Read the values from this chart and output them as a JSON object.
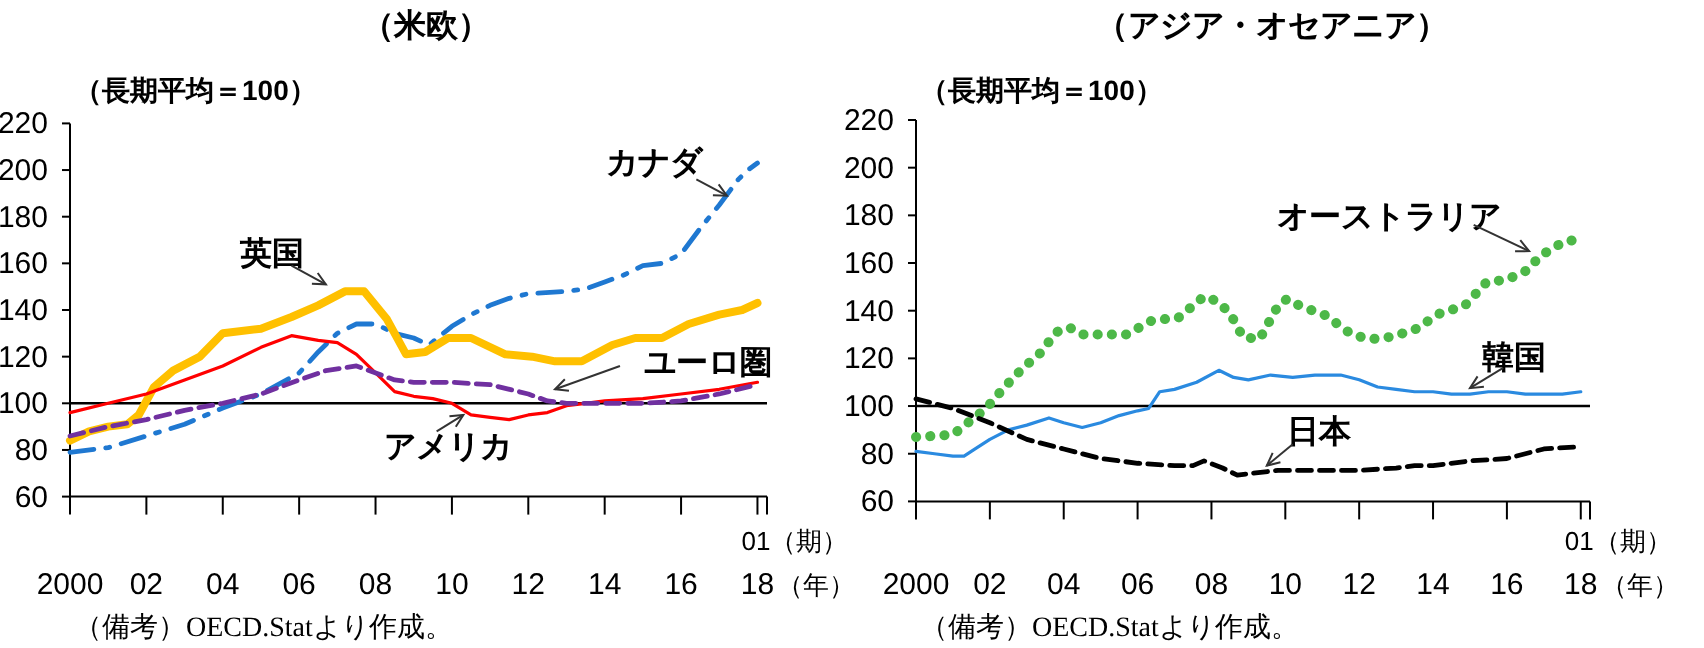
{
  "chart_data": [
    {
      "type": "line",
      "title": "（米欧）",
      "ylabel": "（長期平均＝100）",
      "xlabel": "（年）",
      "annotations": [
        "01（期）",
        "（備考）OECD.Statより作成。"
      ],
      "xlim": [
        2000,
        2018.25
      ],
      "ylim": [
        60,
        220
      ],
      "yticks": [
        60,
        80,
        100,
        120,
        140,
        160,
        180,
        200,
        220
      ],
      "xticks": [
        {
          "value": 2000,
          "label": "2000"
        },
        {
          "value": 2002,
          "label": "02"
        },
        {
          "value": 2004,
          "label": "04"
        },
        {
          "value": 2006,
          "label": "06"
        },
        {
          "value": 2008,
          "label": "08"
        },
        {
          "value": 2010,
          "label": "10"
        },
        {
          "value": 2012,
          "label": "12"
        },
        {
          "value": 2014,
          "label": "14"
        },
        {
          "value": 2016,
          "label": "16"
        },
        {
          "value": 2018,
          "label": "18"
        }
      ],
      "grid": false,
      "legend": false,
      "ref_lines": [
        {
          "axis": "y",
          "value": 100,
          "color": "#000000"
        }
      ],
      "series": [
        {
          "name": "カナダ",
          "color": "#1f78d1",
          "line_style": "dashdot",
          "x": [
            2000,
            2001,
            2002,
            2003,
            2004,
            2005,
            2006,
            2006.5,
            2007,
            2007.5,
            2008,
            2008.5,
            2009,
            2009.4,
            2010,
            2010.5,
            2011,
            2011.5,
            2012,
            2013,
            2013.5,
            2014,
            2014.5,
            2015,
            2015.5,
            2016,
            2016.5,
            2017,
            2017.5,
            2017.75,
            2018
          ],
          "values": [
            79,
            81,
            86,
            91,
            98,
            104,
            113,
            122,
            130,
            134,
            134,
            130,
            128,
            125,
            133,
            138,
            142,
            145,
            147,
            148,
            149,
            152,
            155,
            159,
            160,
            164,
            175,
            185,
            196,
            200,
            203
          ]
        },
        {
          "name": "英国",
          "color": "#ffc000",
          "line_style": "solid",
          "x": [
            2000,
            2000.5,
            2001,
            2001.5,
            2001.8,
            2002.2,
            2002.7,
            2003.4,
            2004,
            2005,
            2005.8,
            2006.5,
            2007.2,
            2007.7,
            2008.3,
            2008.8,
            2009.3,
            2009.9,
            2010.5,
            2011.4,
            2012.1,
            2012.7,
            2013.4,
            2014.2,
            2014.8,
            2015.5,
            2016.2,
            2017,
            2017.6,
            2018
          ],
          "values": [
            84,
            88,
            90,
            91,
            95,
            107,
            114,
            120,
            130,
            132,
            137,
            142,
            148,
            148,
            136,
            121,
            122,
            128,
            128,
            121,
            120,
            118,
            118,
            125,
            128,
            128,
            134,
            138,
            140,
            143
          ]
        },
        {
          "name": "アメリカ",
          "color": "#ff0000",
          "line_style": "solid",
          "x": [
            2000,
            2001,
            2002,
            2003,
            2004,
            2005,
            2005.8,
            2006.5,
            2007,
            2007.5,
            2008,
            2008.5,
            2009,
            2009.5,
            2010,
            2010.5,
            2011,
            2011.5,
            2012,
            2012.5,
            2013,
            2013.5,
            2014,
            2015,
            2016,
            2017,
            2018
          ],
          "values": [
            96,
            100,
            104,
            110,
            116,
            124,
            129,
            127,
            126,
            121,
            113,
            105,
            103,
            102,
            100,
            95,
            94,
            93,
            95,
            96,
            99,
            100,
            101,
            102,
            104,
            106,
            109
          ]
        },
        {
          "name": "ユーロ圏",
          "color": "#7030a0",
          "line_style": "dashed",
          "x": [
            2000,
            2001,
            2002,
            2003,
            2004,
            2005,
            2006,
            2006.7,
            2007.5,
            2008.5,
            2009,
            2010,
            2011,
            2012,
            2012.5,
            2013,
            2014,
            2015,
            2016,
            2017,
            2018
          ],
          "values": [
            86,
            90,
            93,
            97,
            100,
            104,
            110,
            114,
            116,
            110,
            109,
            109,
            108,
            104,
            101,
            100,
            100,
            100,
            101,
            104,
            108
          ]
        }
      ]
    },
    {
      "type": "line",
      "title": "（アジア・オセアニア）",
      "ylabel": "（長期平均＝100）",
      "xlabel": "（年）",
      "annotations": [
        "01（期）",
        "（備考）OECD.Statより作成。"
      ],
      "xlim": [
        2000,
        2018.25
      ],
      "ylim": [
        60,
        220
      ],
      "yticks": [
        60,
        80,
        100,
        120,
        140,
        160,
        180,
        200,
        220
      ],
      "xticks": [
        {
          "value": 2000,
          "label": "2000"
        },
        {
          "value": 2002,
          "label": "02"
        },
        {
          "value": 2004,
          "label": "04"
        },
        {
          "value": 2006,
          "label": "06"
        },
        {
          "value": 2008,
          "label": "08"
        },
        {
          "value": 2010,
          "label": "10"
        },
        {
          "value": 2012,
          "label": "12"
        },
        {
          "value": 2014,
          "label": "14"
        },
        {
          "value": 2016,
          "label": "16"
        },
        {
          "value": 2018,
          "label": "18"
        }
      ],
      "grid": false,
      "legend": false,
      "ref_lines": [
        {
          "axis": "y",
          "value": 100,
          "color": "#000000"
        }
      ],
      "series": [
        {
          "name": "オーストラリア",
          "color": "#4db848",
          "line_style": "dotted",
          "x": [
            2000,
            2001,
            2001.9,
            2002.4,
            2002.9,
            2003.35,
            2003.8,
            2004.15,
            2004.5,
            2005.2,
            2005.7,
            2006.4,
            2007.1,
            2007.8,
            2008.15,
            2008.5,
            2008.85,
            2009.3,
            2009.8,
            2010.05,
            2010.4,
            2011.1,
            2011.8,
            2012.3,
            2012.85,
            2013.5,
            2014.2,
            2014.85,
            2015.45,
            2016,
            2016.55,
            2016.9,
            2017.55,
            2018
          ],
          "values": [
            87,
            88,
            99,
            108,
            116,
            122,
            131,
            133,
            130,
            130,
            130,
            136,
            137,
            146,
            144,
            139,
            129,
            128,
            142,
            145,
            142,
            138,
            130,
            128,
            129,
            132,
            139,
            142,
            152,
            153,
            157,
            163,
            169,
            170
          ]
        },
        {
          "name": "韓国",
          "color": "#2a8ae0",
          "line_style": "solid",
          "x": [
            2000,
            2000.5,
            2001,
            2001.3,
            2001.6,
            2002,
            2002.5,
            2003,
            2003.6,
            2004,
            2004.5,
            2005,
            2005.5,
            2006,
            2006.3,
            2006.6,
            2007,
            2007.6,
            2008.2,
            2008.6,
            2009,
            2009.6,
            2010.2,
            2010.8,
            2011.5,
            2012,
            2012.5,
            2013,
            2013.5,
            2014,
            2014.5,
            2015,
            2015.5,
            2016,
            2016.5,
            2017,
            2017.5,
            2018
          ],
          "values": [
            81,
            80,
            79,
            79,
            82,
            86,
            90,
            92,
            95,
            93,
            91,
            93,
            96,
            98,
            99,
            106,
            107,
            110,
            115,
            112,
            111,
            113,
            112,
            113,
            113,
            111,
            108,
            107,
            106,
            106,
            105,
            105,
            106,
            106,
            105,
            105,
            105,
            106
          ]
        },
        {
          "name": "日本",
          "color": "#000000",
          "line_style": "dashed",
          "x": [
            2000,
            2001,
            2002,
            2003,
            2004,
            2005,
            2006,
            2007,
            2007.5,
            2007.8,
            2008.3,
            2008.7,
            2009.2,
            2009.8,
            2010,
            2011,
            2012,
            2013,
            2013.5,
            2014,
            2015,
            2016,
            2016.5,
            2017,
            2018
          ],
          "values": [
            103,
            99,
            93,
            86,
            82,
            78,
            76,
            75,
            75,
            77,
            74,
            71,
            72,
            73,
            73,
            73,
            73,
            74,
            75,
            75,
            77,
            78,
            80,
            82,
            83
          ]
        }
      ]
    }
  ]
}
